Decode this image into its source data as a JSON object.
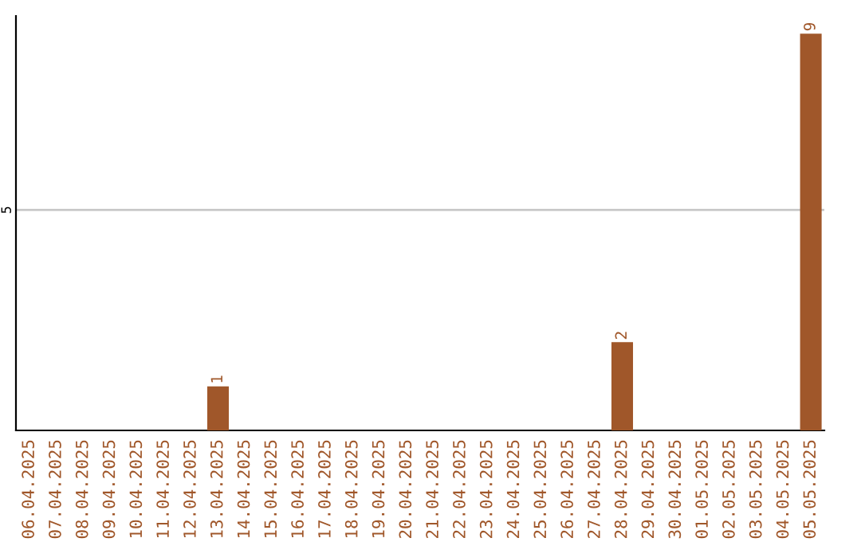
{
  "chart_data": {
    "type": "bar",
    "categories": [
      "06.04.2025",
      "07.04.2025",
      "08.04.2025",
      "09.04.2025",
      "10.04.2025",
      "11.04.2025",
      "12.04.2025",
      "13.04.2025",
      "14.04.2025",
      "15.04.2025",
      "16.04.2025",
      "17.04.2025",
      "18.04.2025",
      "19.04.2025",
      "20.04.2025",
      "21.04.2025",
      "22.04.2025",
      "23.04.2025",
      "24.04.2025",
      "25.04.2025",
      "26.04.2025",
      "27.04.2025",
      "28.04.2025",
      "29.04.2025",
      "30.04.2025",
      "01.05.2025",
      "02.05.2025",
      "03.05.2025",
      "04.05.2025",
      "05.05.2025"
    ],
    "values": [
      0,
      0,
      0,
      0,
      0,
      0,
      0,
      1,
      0,
      0,
      0,
      0,
      0,
      0,
      0,
      0,
      0,
      0,
      0,
      0,
      0,
      0,
      2,
      0,
      0,
      0,
      0,
      0,
      0,
      9
    ],
    "value_labels": [
      null,
      null,
      null,
      null,
      null,
      null,
      null,
      "1",
      null,
      null,
      null,
      null,
      null,
      null,
      null,
      null,
      null,
      null,
      null,
      null,
      null,
      null,
      "2",
      null,
      null,
      null,
      null,
      null,
      null,
      "9"
    ],
    "color": "#a0572a",
    "ylim": [
      0,
      9.4
    ],
    "yticks": [
      5
    ],
    "grid": "y",
    "legend": false
  }
}
